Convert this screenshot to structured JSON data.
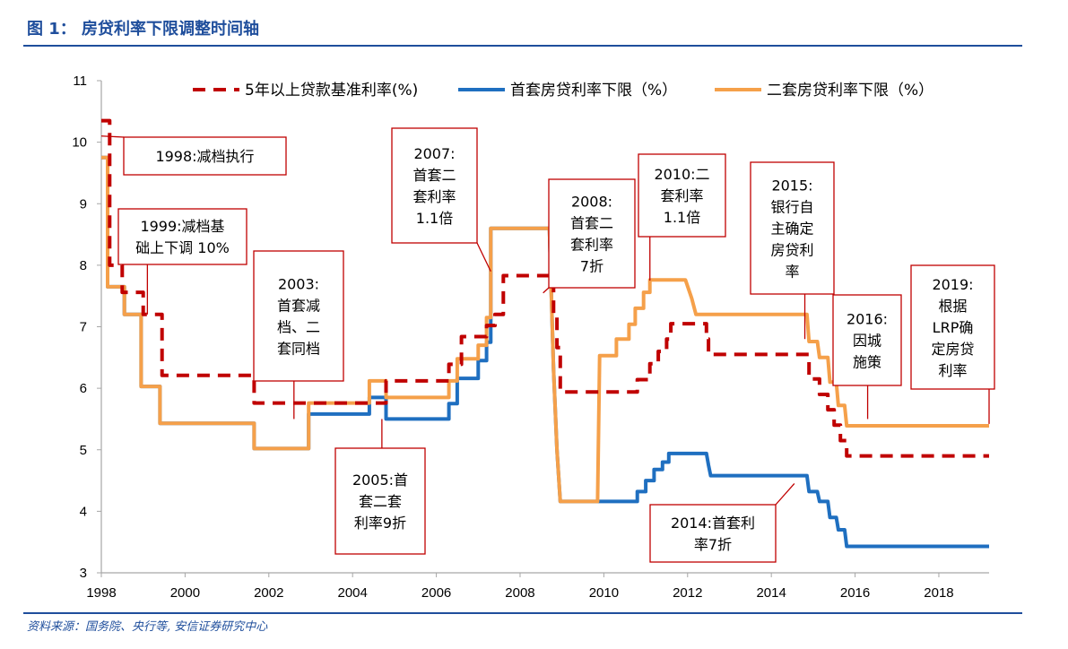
{
  "header": {
    "title": "图 1：  房贷利率下限调整时间轴"
  },
  "footer": {
    "source": "资料来源：国务院、央行等, 安信证券研究中心"
  },
  "colors": {
    "accent": "#1f4e9c",
    "benchmark": "#c00000",
    "first_home": "#1f6fc0",
    "second_home": "#f5a04a",
    "annotation_border": "#c00000"
  },
  "chart_data": {
    "type": "line",
    "title": "",
    "xlabel": "",
    "ylabel": "",
    "xlim": [
      1998,
      2019.2
    ],
    "ylim": [
      3,
      11
    ],
    "x_ticks": [
      "1998",
      "2000",
      "2002",
      "2004",
      "2006",
      "2008",
      "2010",
      "2012",
      "2014",
      "2016",
      "2018"
    ],
    "y_ticks": [
      "3",
      "4",
      "5",
      "6",
      "7",
      "8",
      "9",
      "10",
      "11"
    ],
    "grid": false,
    "legend_position": "top",
    "series": [
      {
        "name": "5年以上贷款基准利率(%)",
        "style": "dashed",
        "color": "#c00000",
        "points": [
          [
            1998.0,
            10.35
          ],
          [
            1998.2,
            10.35
          ],
          [
            1998.2,
            8.0
          ],
          [
            1998.5,
            8.0
          ],
          [
            1998.5,
            7.56
          ],
          [
            1999.0,
            7.56
          ],
          [
            1999.0,
            7.2
          ],
          [
            1999.45,
            7.2
          ],
          [
            1999.45,
            6.21
          ],
          [
            2001.65,
            6.21
          ],
          [
            2001.65,
            5.76
          ],
          [
            2004.8,
            5.76
          ],
          [
            2004.8,
            6.12
          ],
          [
            2006.3,
            6.12
          ],
          [
            2006.3,
            6.39
          ],
          [
            2006.6,
            6.39
          ],
          [
            2006.6,
            6.84
          ],
          [
            2007.2,
            6.84
          ],
          [
            2007.2,
            7.02
          ],
          [
            2007.4,
            7.02
          ],
          [
            2007.4,
            7.2
          ],
          [
            2007.6,
            7.2
          ],
          [
            2007.6,
            7.83
          ],
          [
            2008.7,
            7.83
          ],
          [
            2008.7,
            7.74
          ],
          [
            2008.8,
            7.74
          ],
          [
            2008.8,
            7.2
          ],
          [
            2008.88,
            7.2
          ],
          [
            2008.88,
            6.66
          ],
          [
            2008.96,
            6.66
          ],
          [
            2008.96,
            5.94
          ],
          [
            2010.8,
            5.94
          ],
          [
            2010.8,
            6.14
          ],
          [
            2011.1,
            6.14
          ],
          [
            2011.1,
            6.4
          ],
          [
            2011.3,
            6.4
          ],
          [
            2011.3,
            6.6
          ],
          [
            2011.5,
            6.6
          ],
          [
            2011.5,
            6.8
          ],
          [
            2011.6,
            6.8
          ],
          [
            2011.6,
            7.05
          ],
          [
            2012.45,
            7.05
          ],
          [
            2012.45,
            6.8
          ],
          [
            2012.5,
            6.8
          ],
          [
            2012.5,
            6.55
          ],
          [
            2014.9,
            6.55
          ],
          [
            2014.9,
            6.15
          ],
          [
            2015.15,
            6.15
          ],
          [
            2015.15,
            5.9
          ],
          [
            2015.35,
            5.9
          ],
          [
            2015.35,
            5.65
          ],
          [
            2015.5,
            5.65
          ],
          [
            2015.5,
            5.4
          ],
          [
            2015.65,
            5.4
          ],
          [
            2015.65,
            5.15
          ],
          [
            2015.8,
            5.15
          ],
          [
            2015.8,
            4.9
          ],
          [
            2019.2,
            4.9
          ]
        ]
      },
      {
        "name": "首套房贷利率下限（%）",
        "style": "solid",
        "color": "#1f6fc0",
        "points": [
          [
            1998.0,
            9.75
          ],
          [
            1998.15,
            9.75
          ],
          [
            1998.15,
            7.65
          ],
          [
            1998.55,
            7.65
          ],
          [
            1998.55,
            7.2
          ],
          [
            1998.95,
            7.2
          ],
          [
            1998.95,
            6.03
          ],
          [
            1999.4,
            6.03
          ],
          [
            1999.4,
            5.43
          ],
          [
            2001.65,
            5.43
          ],
          [
            2001.65,
            5.02
          ],
          [
            2002.95,
            5.02
          ],
          [
            2002.95,
            5.58
          ],
          [
            2004.4,
            5.58
          ],
          [
            2004.4,
            5.85
          ],
          [
            2004.8,
            5.85
          ],
          [
            2004.8,
            5.5
          ],
          [
            2006.3,
            5.5
          ],
          [
            2006.3,
            5.75
          ],
          [
            2006.5,
            5.75
          ],
          [
            2006.5,
            6.16
          ],
          [
            2007.0,
            6.16
          ],
          [
            2007.0,
            6.45
          ],
          [
            2007.2,
            6.45
          ],
          [
            2007.2,
            6.75
          ],
          [
            2007.3,
            6.75
          ],
          [
            2007.3,
            8.6
          ],
          [
            2008.7,
            8.6
          ],
          [
            2008.8,
            6.3
          ],
          [
            2008.88,
            5.0
          ],
          [
            2008.96,
            4.16
          ],
          [
            2010.8,
            4.16
          ],
          [
            2010.8,
            4.32
          ],
          [
            2011.0,
            4.32
          ],
          [
            2011.0,
            4.5
          ],
          [
            2011.2,
            4.5
          ],
          [
            2011.2,
            4.68
          ],
          [
            2011.4,
            4.68
          ],
          [
            2011.4,
            4.8
          ],
          [
            2011.55,
            4.8
          ],
          [
            2011.55,
            4.94
          ],
          [
            2012.45,
            4.94
          ],
          [
            2012.5,
            4.75
          ],
          [
            2012.55,
            4.58
          ],
          [
            2014.85,
            4.58
          ],
          [
            2014.9,
            4.32
          ],
          [
            2015.1,
            4.32
          ],
          [
            2015.15,
            4.16
          ],
          [
            2015.35,
            4.16
          ],
          [
            2015.4,
            3.9
          ],
          [
            2015.55,
            3.9
          ],
          [
            2015.6,
            3.7
          ],
          [
            2015.75,
            3.7
          ],
          [
            2015.8,
            3.43
          ],
          [
            2019.2,
            3.43
          ]
        ]
      },
      {
        "name": "二套房贷利率下限（%）",
        "style": "solid",
        "color": "#f5a04a",
        "points": [
          [
            1998.0,
            9.75
          ],
          [
            1998.15,
            9.75
          ],
          [
            1998.15,
            7.65
          ],
          [
            1998.55,
            7.65
          ],
          [
            1998.55,
            7.2
          ],
          [
            1998.95,
            7.2
          ],
          [
            1998.95,
            6.03
          ],
          [
            1999.4,
            6.03
          ],
          [
            1999.4,
            5.43
          ],
          [
            2001.65,
            5.43
          ],
          [
            2001.65,
            5.02
          ],
          [
            2002.95,
            5.02
          ],
          [
            2002.95,
            5.76
          ],
          [
            2004.4,
            5.76
          ],
          [
            2004.4,
            6.12
          ],
          [
            2004.8,
            6.12
          ],
          [
            2004.8,
            5.85
          ],
          [
            2006.3,
            5.85
          ],
          [
            2006.3,
            6.12
          ],
          [
            2006.5,
            6.12
          ],
          [
            2006.5,
            6.48
          ],
          [
            2007.0,
            6.48
          ],
          [
            2007.0,
            6.7
          ],
          [
            2007.2,
            6.7
          ],
          [
            2007.2,
            7.15
          ],
          [
            2007.3,
            7.15
          ],
          [
            2007.3,
            8.6
          ],
          [
            2008.7,
            8.6
          ],
          [
            2008.8,
            6.3
          ],
          [
            2008.88,
            5.0
          ],
          [
            2008.96,
            4.16
          ],
          [
            2009.85,
            4.16
          ],
          [
            2009.9,
            6.53
          ],
          [
            2010.3,
            6.53
          ],
          [
            2010.3,
            6.8
          ],
          [
            2010.6,
            6.8
          ],
          [
            2010.6,
            7.04
          ],
          [
            2010.75,
            7.04
          ],
          [
            2010.75,
            7.3
          ],
          [
            2010.95,
            7.3
          ],
          [
            2010.95,
            7.56
          ],
          [
            2011.1,
            7.56
          ],
          [
            2011.1,
            7.76
          ],
          [
            2011.95,
            7.76
          ],
          [
            2012.1,
            7.46
          ],
          [
            2012.2,
            7.2
          ],
          [
            2014.85,
            7.2
          ],
          [
            2014.9,
            6.76
          ],
          [
            2015.1,
            6.76
          ],
          [
            2015.15,
            6.5
          ],
          [
            2015.35,
            6.5
          ],
          [
            2015.4,
            6.1
          ],
          [
            2015.55,
            6.1
          ],
          [
            2015.6,
            5.72
          ],
          [
            2015.75,
            5.72
          ],
          [
            2015.8,
            5.39
          ],
          [
            2019.2,
            5.39
          ]
        ]
      }
    ],
    "annotations": [
      {
        "id": "1998",
        "lines": [
          "1998:减档执行"
        ],
        "anchor": [
          1998.0,
          10.1
        ]
      },
      {
        "id": "1999",
        "lines": [
          "1999:减档基",
          "础上下调 10%"
        ],
        "anchor": [
          1999.1,
          7.2
        ]
      },
      {
        "id": "2003",
        "lines": [
          "2003:",
          "首套减",
          "档、二",
          "套同档"
        ],
        "anchor": [
          2002.6,
          5.5
        ]
      },
      {
        "id": "2005",
        "lines": [
          "2005:首",
          "套二套",
          "利率9折"
        ],
        "anchor": [
          2004.7,
          5.5
        ]
      },
      {
        "id": "2007",
        "lines": [
          "2007:",
          "首套二",
          "套利率",
          "1.1倍"
        ],
        "anchor": [
          2007.3,
          7.9
        ]
      },
      {
        "id": "2008",
        "lines": [
          "2008:",
          "首套二",
          "套利率",
          "7折"
        ],
        "anchor": [
          2008.55,
          7.55
        ]
      },
      {
        "id": "2010",
        "lines": [
          "2010:二",
          "套利率",
          "1.1倍"
        ],
        "anchor": [
          2011.1,
          7.75
        ]
      },
      {
        "id": "2014",
        "lines": [
          "2014:首套利",
          "率7折"
        ],
        "anchor": [
          2014.55,
          4.45
        ]
      },
      {
        "id": "2015",
        "lines": [
          "2015:",
          "银行自",
          "主确定",
          "房贷利",
          "率"
        ],
        "anchor": [
          2014.8,
          6.8
        ]
      },
      {
        "id": "2016",
        "lines": [
          "2016:",
          "因城",
          "施策"
        ],
        "anchor": [
          2016.3,
          5.5
        ]
      },
      {
        "id": "2019",
        "lines": [
          "2019:",
          "根据",
          "LRP确",
          "定房贷",
          "利率"
        ],
        "anchor": [
          2019.2,
          5.42
        ]
      }
    ]
  }
}
